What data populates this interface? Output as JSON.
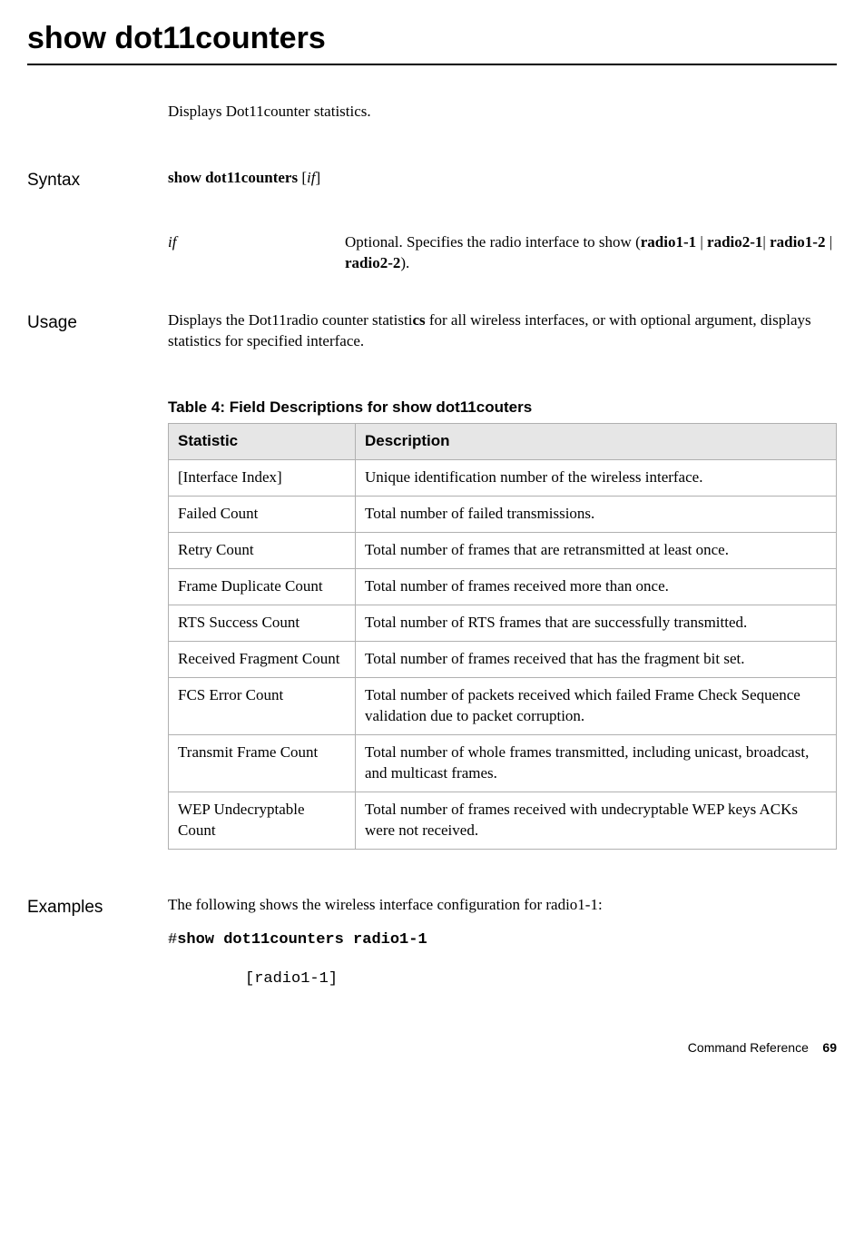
{
  "title": "show dot11counters",
  "intro": "Displays Dot11counter statistics.",
  "syntax": {
    "label": "Syntax",
    "command": "show dot11counters",
    "arg_open": " [",
    "arg": "if",
    "arg_close": "]",
    "param_name": "if",
    "param_desc_prefix": "Optional. Specifies the radio interface to show (",
    "param_opt1": "radio1-1",
    "param_sep1": " | ",
    "param_opt2": "radio2-1",
    "param_sep2": "| ",
    "param_opt3": "radio1-2",
    "param_sep3": " | ",
    "param_opt4": "radio2-2",
    "param_desc_suffix": ")."
  },
  "usage": {
    "label": "Usage",
    "text_prefix": "Displays the Dot11radio counter statisti",
    "text_bold": "cs",
    "text_suffix": " for all wireless interfaces, or with optional argument, displays statistics for specified interface."
  },
  "table": {
    "caption": "Table 4: Field Descriptions for show dot11couters",
    "header_stat": "Statistic",
    "header_desc": "Description",
    "rows": [
      {
        "stat": "[Interface Index]",
        "desc": "Unique identification number of the wireless  interface."
      },
      {
        "stat": "Failed Count",
        "desc": "Total number of failed transmissions."
      },
      {
        "stat": "Retry Count",
        "desc": "Total number of frames that are retransmitted at least once."
      },
      {
        "stat": "Frame Duplicate Count",
        "desc": "Total number of frames received more than once."
      },
      {
        "stat": "RTS Success Count",
        "desc": "Total number of RTS frames that are successfully transmitted."
      },
      {
        "stat": "Received Fragment Count",
        "desc": "Total number of frames received that has the fragment bit set."
      },
      {
        "stat": "FCS Error Count",
        "desc": "Total number of packets received which failed Frame Check Sequence validation due to packet corruption."
      },
      {
        "stat": "Transmit Frame Count",
        "desc": "Total number of whole frames transmitted, including unicast, broadcast, and multicast frames."
      },
      {
        "stat": "WEP Undecryptable Count",
        "desc": "Total number of frames received with undecryptable WEP keys ACKs were not received."
      }
    ]
  },
  "examples": {
    "label": "Examples",
    "intro": "The following shows the wireless interface configuration for radio1-1:",
    "prompt": "#",
    "command": "show dot11counters radio1-1",
    "output": "[radio1-1]"
  },
  "footer": {
    "text": "Command Reference",
    "page": "69"
  }
}
